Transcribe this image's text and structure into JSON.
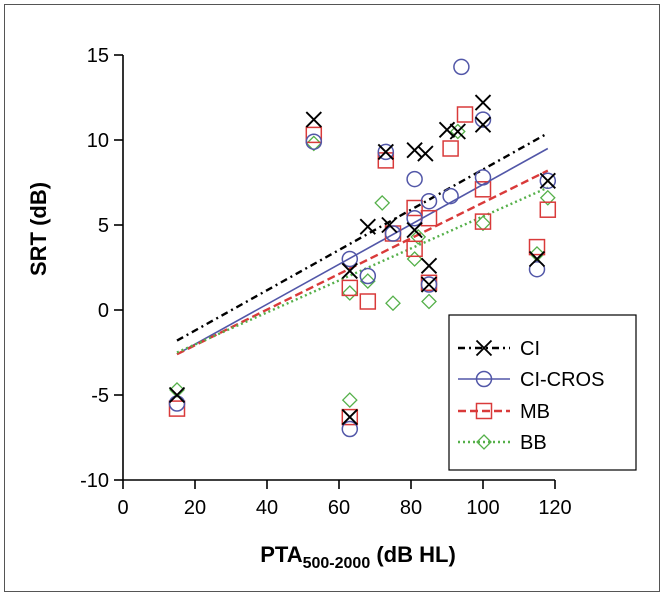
{
  "chart_data": {
    "type": "scatter",
    "title": "",
    "xlabel": {
      "main": "PTA",
      "sub": "500-2000",
      "unit": " (dB HL)"
    },
    "ylabel": "SRT (dB)",
    "xlim": [
      0,
      120
    ],
    "ylim": [
      -10,
      15
    ],
    "xticks": [
      0,
      20,
      40,
      60,
      80,
      100,
      120
    ],
    "yticks": [
      -10,
      -5,
      0,
      5,
      10,
      15
    ],
    "grid": false,
    "legend_position": "bottom-right",
    "series": [
      {
        "name": "CI",
        "marker": "x",
        "color": "#000000",
        "dash": "7,4,2,4",
        "fit": [
          [
            15,
            -1.8
          ],
          [
            118,
            10.4
          ]
        ],
        "points": [
          [
            15,
            -5
          ],
          [
            53,
            11.2
          ],
          [
            63,
            2.3
          ],
          [
            63,
            -6.3
          ],
          [
            68,
            4.9
          ],
          [
            73,
            9.3
          ],
          [
            74,
            5
          ],
          [
            81,
            9.4
          ],
          [
            81,
            4.7
          ],
          [
            84,
            9.2
          ],
          [
            85,
            2.6
          ],
          [
            85,
            1.5
          ],
          [
            90,
            10.6
          ],
          [
            93,
            10.5
          ],
          [
            100,
            12.2
          ],
          [
            100,
            10.9
          ],
          [
            118,
            7.6
          ],
          [
            115,
            3
          ]
        ]
      },
      {
        "name": "CI-CROS",
        "marker": "circle",
        "color": "#5257a8",
        "dash": "",
        "fit": [
          [
            15,
            -2.6
          ],
          [
            118,
            9.5
          ]
        ],
        "points": [
          [
            15,
            -5.5
          ],
          [
            53,
            9.9
          ],
          [
            63,
            3
          ],
          [
            63,
            -7
          ],
          [
            68,
            2
          ],
          [
            73,
            9.3
          ],
          [
            75,
            4.5
          ],
          [
            81,
            7.7
          ],
          [
            81,
            5.4
          ],
          [
            85,
            6.4
          ],
          [
            85,
            1.5
          ],
          [
            91,
            6.7
          ],
          [
            94,
            14.3
          ],
          [
            100,
            11.2
          ],
          [
            100,
            7.8
          ],
          [
            115,
            2.4
          ],
          [
            118,
            7.6
          ]
        ]
      },
      {
        "name": "MB",
        "marker": "square",
        "color": "#d93a3a",
        "dash": "8,4",
        "fit": [
          [
            15,
            -2.6
          ],
          [
            118,
            8.2
          ]
        ],
        "points": [
          [
            15,
            -5.8
          ],
          [
            53,
            10.3
          ],
          [
            63,
            1.3
          ],
          [
            63,
            -6.3
          ],
          [
            68,
            0.5
          ],
          [
            73,
            8.8
          ],
          [
            75,
            4.5
          ],
          [
            81,
            6
          ],
          [
            81,
            3.6
          ],
          [
            85,
            5.4
          ],
          [
            85,
            1.6
          ],
          [
            91,
            9.5
          ],
          [
            95,
            11.5
          ],
          [
            100,
            7.1
          ],
          [
            100,
            5.2
          ],
          [
            115,
            3.7
          ],
          [
            118,
            5.9
          ]
        ]
      },
      {
        "name": "BB",
        "marker": "diamond",
        "color": "#55b04a",
        "dash": "2,3",
        "fit": [
          [
            15,
            -2.5
          ],
          [
            118,
            7.2
          ]
        ],
        "points": [
          [
            15,
            -4.7
          ],
          [
            53,
            9.8
          ],
          [
            63,
            -5.3
          ],
          [
            63,
            1
          ],
          [
            68,
            1.7
          ],
          [
            72,
            6.3
          ],
          [
            75,
            0.4
          ],
          [
            81,
            3
          ],
          [
            82,
            4.3
          ],
          [
            85,
            0.5
          ],
          [
            93,
            10.5
          ],
          [
            100,
            5.1
          ],
          [
            115,
            3.3
          ],
          [
            118,
            6.6
          ]
        ]
      }
    ]
  }
}
